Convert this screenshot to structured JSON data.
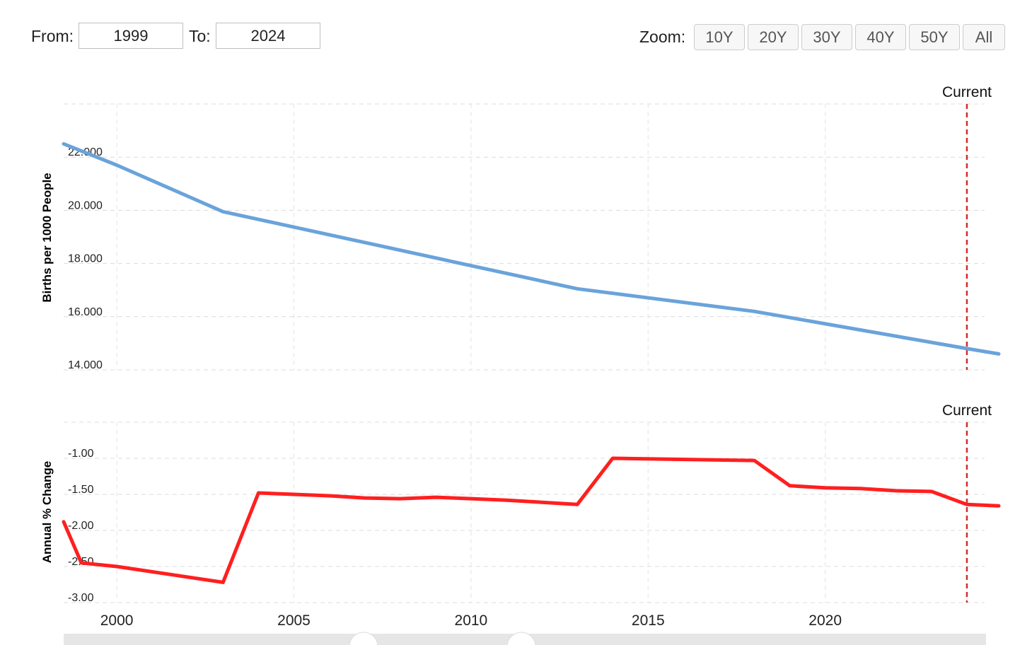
{
  "range": {
    "from_label": "From:",
    "from_value": "1999",
    "to_label": "To:",
    "to_value": "2024"
  },
  "zoom": {
    "label": "Zoom:",
    "buttons": [
      "10Y",
      "20Y",
      "30Y",
      "40Y",
      "50Y",
      "All"
    ]
  },
  "chart_data": [
    {
      "type": "line",
      "ylabel": "Births per 1000 People",
      "current_label": "Current",
      "line_color": "#6aa3db",
      "ylim": [
        14.0,
        24.0
      ],
      "yticks": [
        14.0,
        16.0,
        18.0,
        20.0,
        22.0
      ],
      "ytick_labels": [
        "14.000",
        "16.000",
        "18.000",
        "20.000",
        "22.000"
      ],
      "current_x": 2024,
      "x": [
        1998.5,
        2000,
        2003,
        2013,
        2018,
        2024,
        2024.9
      ],
      "y": [
        22.5,
        21.7,
        19.95,
        17.05,
        16.2,
        14.8,
        14.6
      ]
    },
    {
      "type": "line",
      "ylabel": "Annual % Change",
      "current_label": "Current",
      "line_color": "#ff1f1f",
      "ylim": [
        -3.0,
        -0.5
      ],
      "yticks": [
        -3.0,
        -2.5,
        -2.0,
        -1.5,
        -1.0
      ],
      "ytick_labels": [
        "-3.00",
        "-2.50",
        "-2.00",
        "-1.50",
        "-1.00"
      ],
      "current_x": 2024,
      "x": [
        1998.5,
        1999,
        2000,
        2003,
        2004,
        2005,
        2006,
        2007,
        2008,
        2009,
        2010,
        2011,
        2012,
        2013,
        2014,
        2018,
        2019,
        2020,
        2021,
        2022,
        2023,
        2024,
        2024.9
      ],
      "y": [
        -1.88,
        -2.45,
        -2.5,
        -2.72,
        -1.48,
        -1.5,
        -1.52,
        -1.55,
        -1.56,
        -1.54,
        -1.56,
        -1.58,
        -1.61,
        -1.64,
        -1.0,
        -1.03,
        -1.38,
        -1.41,
        -1.42,
        -1.45,
        -1.46,
        -1.64,
        -1.66
      ]
    }
  ],
  "x_axis": {
    "tick_labels": [
      "2000",
      "2005",
      "2010",
      "2015",
      "2020"
    ],
    "ticks": [
      2000,
      2005,
      2010,
      2015,
      2020
    ],
    "range": [
      1998.5,
      2024.5
    ]
  }
}
